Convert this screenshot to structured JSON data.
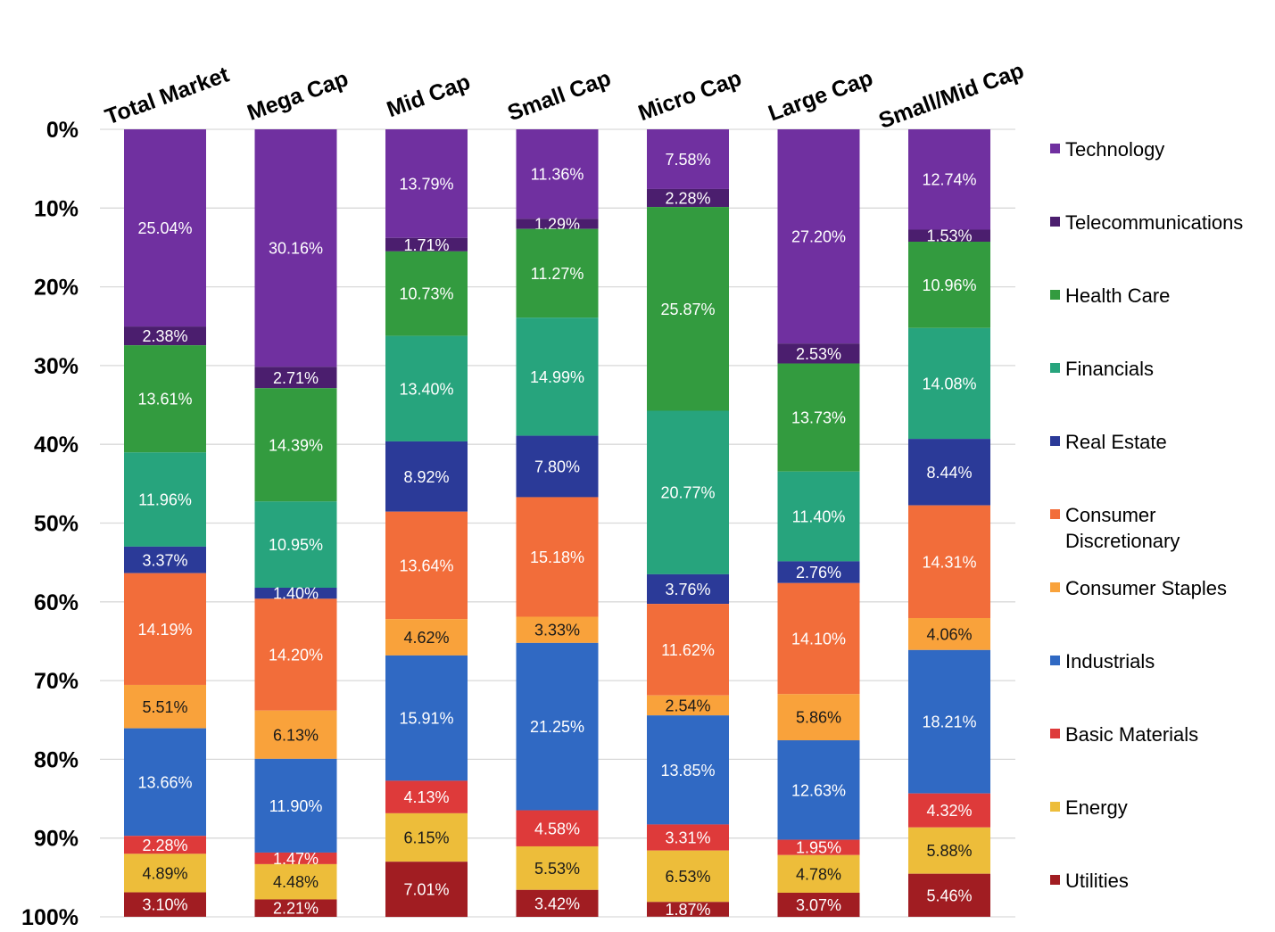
{
  "chart_data": {
    "type": "bar",
    "orientation": "vertical-stacked-100",
    "y_axis": {
      "min": 0,
      "max": 100,
      "direction": "top-to-bottom",
      "ticks": [
        "0%",
        "10%",
        "20%",
        "30%",
        "40%",
        "50%",
        "60%",
        "70%",
        "80%",
        "90%",
        "100%"
      ]
    },
    "grid": true,
    "legend_position": "right",
    "categories": [
      "Total Market",
      "Mega Cap",
      "Mid Cap",
      "Small Cap",
      "Micro Cap",
      "Large Cap",
      "Small/Mid Cap"
    ],
    "series": [
      {
        "name": "Technology",
        "color": "#7030A0",
        "values": [
          25.04,
          30.16,
          13.79,
          11.36,
          7.58,
          27.2,
          12.74
        ],
        "labels": [
          "25.04%",
          "30.16%",
          "13.79%",
          "11.36%",
          "7.58%",
          "27.20%",
          "12.74%"
        ]
      },
      {
        "name": "Telecommunications",
        "color": "#4B1E6E",
        "values": [
          2.38,
          2.71,
          1.71,
          1.29,
          2.28,
          2.53,
          1.53
        ],
        "labels": [
          "2.38%",
          "2.71%",
          "1.71%",
          "1.29%",
          "2.28%",
          "2.53%",
          "1.53%"
        ]
      },
      {
        "name": "Health Care",
        "color": "#339B3F",
        "values": [
          13.61,
          14.39,
          10.73,
          11.27,
          25.87,
          13.73,
          10.96
        ],
        "labels": [
          "13.61%",
          "14.39%",
          "10.73%",
          "11.27%",
          "25.87%",
          "13.73%",
          "10.96%"
        ]
      },
      {
        "name": "Financials",
        "color": "#27A47D",
        "values": [
          11.96,
          10.95,
          13.4,
          14.99,
          20.77,
          11.4,
          14.08
        ],
        "labels": [
          "11.96%",
          "10.95%",
          "13.40%",
          "14.99%",
          "20.77%",
          "11.40%",
          "14.08%"
        ]
      },
      {
        "name": "Real Estate",
        "color": "#2B3A98",
        "values": [
          3.37,
          1.4,
          8.92,
          7.8,
          3.76,
          2.76,
          8.44
        ],
        "labels": [
          "3.37%",
          "1.40%",
          "8.92%",
          "7.80%",
          "3.76%",
          "2.76%",
          "8.44%"
        ]
      },
      {
        "name": "Consumer Discretionary",
        "color": "#F26D3A",
        "values": [
          14.19,
          14.2,
          13.64,
          15.18,
          11.62,
          14.1,
          14.31
        ],
        "labels": [
          "14.19%",
          "14.20%",
          "13.64%",
          "15.18%",
          "11.62%",
          "14.10%",
          "14.31%"
        ]
      },
      {
        "name": "Consumer Staples",
        "color": "#F9A23B",
        "values": [
          5.51,
          6.13,
          4.62,
          3.33,
          2.54,
          5.86,
          4.06
        ],
        "labels": [
          "5.51%",
          "6.13%",
          "4.62%",
          "3.33%",
          "2.54%",
          "5.86%",
          "4.06%"
        ]
      },
      {
        "name": "Industrials",
        "color": "#3069C3",
        "values": [
          13.66,
          11.9,
          15.91,
          21.25,
          13.85,
          12.63,
          18.21
        ],
        "labels": [
          "13.66%",
          "11.90%",
          "15.91%",
          "21.25%",
          "13.85%",
          "12.63%",
          "18.21%"
        ]
      },
      {
        "name": "Basic Materials",
        "color": "#DE3A3A",
        "values": [
          2.28,
          1.47,
          4.13,
          4.58,
          3.31,
          1.95,
          4.32
        ],
        "labels": [
          "2.28%",
          "1.47%",
          "4.13%",
          "4.58%",
          "3.31%",
          "1.95%",
          "4.32%"
        ]
      },
      {
        "name": "Energy",
        "color": "#EDBD3A",
        "values": [
          4.89,
          4.48,
          6.15,
          5.53,
          6.53,
          4.78,
          5.88
        ],
        "labels": [
          "4.89%",
          "4.48%",
          "6.15%",
          "5.53%",
          "6.53%",
          "4.78%",
          "5.88%"
        ]
      },
      {
        "name": "Utilities",
        "color": "#A11D22",
        "values": [
          3.1,
          2.21,
          7.01,
          3.42,
          1.87,
          3.07,
          5.46
        ],
        "labels": [
          "3.10%",
          "2.21%",
          "7.01%",
          "3.42%",
          "1.87%",
          "3.07%",
          "5.46%"
        ]
      }
    ],
    "legend": [
      "Technology",
      "Telecommunications",
      "Health Care",
      "Financials",
      "Real Estate",
      "Consumer Discretionary",
      "Consumer Staples",
      "Industrials",
      "Basic Materials",
      "Energy",
      "Utilities"
    ]
  }
}
